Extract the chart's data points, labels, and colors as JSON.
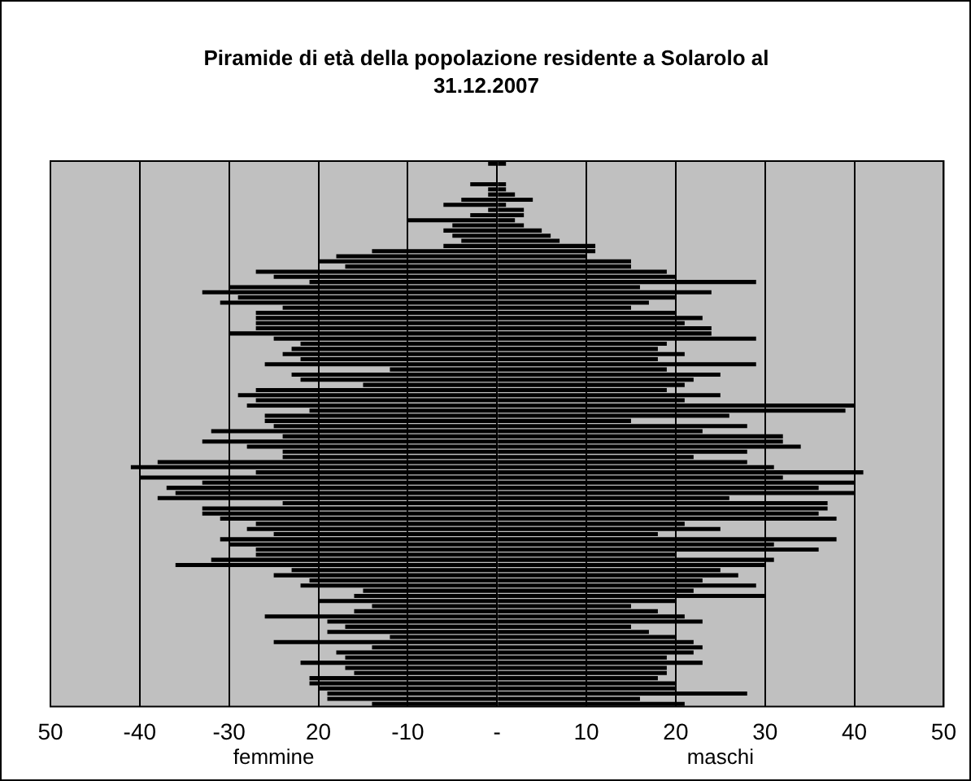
{
  "chart_data": {
    "type": "bar",
    "orientation": "horizontal",
    "stacked": true,
    "title": "Piramide di età della popolazione residente a Solarolo al 31.12.2007",
    "categories": [
      null,
      null,
      null,
      null,
      null,
      null,
      null,
      null,
      null,
      null,
      null,
      null,
      null,
      null,
      null,
      null,
      null,
      null,
      null,
      null,
      null,
      null,
      null,
      null,
      null,
      null,
      null,
      null,
      null,
      null,
      null,
      null,
      null,
      null,
      null,
      null,
      null,
      null,
      null,
      null,
      null,
      null,
      null,
      null,
      null,
      null,
      null,
      null,
      null,
      null,
      null,
      null,
      null,
      null,
      null,
      null,
      null,
      null,
      null,
      null,
      null,
      null,
      null,
      null,
      null,
      null,
      null,
      null,
      null,
      null,
      null,
      null,
      null,
      null,
      null,
      null,
      null,
      null,
      null,
      null,
      null,
      null,
      null,
      null,
      null,
      null,
      null,
      null,
      null,
      null,
      null,
      null,
      null,
      null,
      null,
      null,
      null,
      null,
      null,
      null,
      null,
      null,
      null,
      null,
      null,
      null
    ],
    "series": [
      {
        "name": "femmine",
        "color": "#000000",
        "values": [
          -1,
          null,
          null,
          null,
          -3,
          -1,
          -1,
          -4,
          -6,
          -1,
          -3,
          -10,
          -5,
          -6,
          -5,
          -4,
          -6,
          -14,
          -18,
          -20,
          -17,
          -27,
          -25,
          -21,
          -30,
          -33,
          -29,
          -31,
          -24,
          -27,
          -27,
          -27,
          -27,
          -30,
          -25,
          -22,
          -23,
          -24,
          -22,
          -26,
          -12,
          -23,
          -22,
          -15,
          -27,
          -29,
          -27,
          -28,
          -21,
          -26,
          -26,
          -25,
          -32,
          -24,
          -33,
          -28,
          -24,
          -24,
          -38,
          -41,
          -27,
          -40,
          -33,
          -37,
          -36,
          -38,
          -24,
          -33,
          -33,
          -31,
          -27,
          -28,
          -25,
          -31,
          -30,
          -27,
          -27,
          -32,
          -36,
          -23,
          -25,
          -21,
          -22,
          -15,
          -16,
          -20,
          -14,
          -16,
          -26,
          -19,
          -17,
          -19,
          -12,
          -25,
          -14,
          -18,
          -17,
          -22,
          -17,
          -16,
          -21,
          -21,
          -20,
          -19,
          -19,
          -14
        ]
      },
      {
        "name": "maschi",
        "color": "#000000",
        "values": [
          1,
          null,
          null,
          null,
          1,
          1,
          2,
          4,
          1,
          3,
          3,
          2,
          3,
          5,
          6,
          7,
          11,
          11,
          10,
          15,
          15,
          19,
          20,
          29,
          16,
          24,
          20,
          17,
          15,
          20,
          23,
          21,
          24,
          24,
          29,
          19,
          18,
          21,
          18,
          29,
          19,
          25,
          22,
          21,
          19,
          25,
          21,
          40,
          39,
          26,
          15,
          28,
          23,
          32,
          32,
          34,
          28,
          22,
          28,
          31,
          41,
          32,
          40,
          36,
          40,
          26,
          37,
          37,
          36,
          38,
          21,
          25,
          18,
          38,
          31,
          36,
          20,
          31,
          30,
          25,
          27,
          23,
          29,
          22,
          30,
          20,
          15,
          18,
          21,
          23,
          15,
          17,
          20,
          22,
          23,
          22,
          19,
          23,
          19,
          19,
          18,
          20,
          20,
          28,
          16,
          21
        ]
      }
    ],
    "xlim": [
      -50,
      50
    ],
    "xticks": [
      {
        "value": -50,
        "label": "50"
      },
      -40,
      -30,
      {
        "value": -20,
        "label": "20"
      },
      -10,
      {
        "value": 0,
        "label": "-"
      },
      10,
      20,
      30,
      40,
      50
    ],
    "grid": "x"
  }
}
